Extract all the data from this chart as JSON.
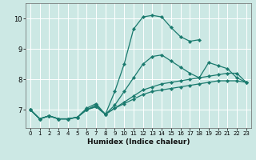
{
  "title": "",
  "xlabel": "Humidex (Indice chaleur)",
  "bg_color": "#cce8e4",
  "grid_color": "#ffffff",
  "line_color": "#1a7a6e",
  "xlim": [
    -0.5,
    23.5
  ],
  "ylim": [
    6.4,
    10.5
  ],
  "yticks": [
    7,
    8,
    9,
    10
  ],
  "xticks": [
    0,
    1,
    2,
    3,
    4,
    5,
    6,
    7,
    8,
    9,
    10,
    11,
    12,
    13,
    14,
    15,
    16,
    17,
    18,
    19,
    20,
    21,
    22,
    23
  ],
  "curves": [
    {
      "x": [
        0,
        1,
        2,
        3,
        4,
        5,
        6,
        7,
        8,
        9,
        10,
        11,
        12,
        13,
        14,
        15,
        16,
        17,
        18,
        19,
        20,
        21,
        22,
        23
      ],
      "y": [
        7.0,
        6.7,
        6.8,
        6.7,
        6.7,
        6.75,
        7.0,
        7.15,
        6.85,
        7.6,
        8.5,
        9.65,
        10.05,
        10.1,
        10.05,
        9.7,
        9.4,
        9.25,
        9.3,
        null,
        null,
        null,
        null,
        null
      ]
    },
    {
      "x": [
        0,
        1,
        2,
        3,
        4,
        5,
        6,
        7,
        8,
        9,
        10,
        11,
        12,
        13,
        14,
        15,
        16,
        17,
        18,
        19,
        20,
        21,
        22,
        23
      ],
      "y": [
        7.0,
        6.7,
        6.8,
        6.7,
        6.7,
        6.75,
        7.05,
        7.2,
        6.85,
        7.15,
        7.6,
        8.05,
        8.5,
        8.75,
        8.8,
        8.6,
        8.4,
        8.2,
        8.05,
        8.55,
        8.45,
        8.35,
        8.05,
        7.9
      ]
    },
    {
      "x": [
        0,
        1,
        2,
        3,
        4,
        5,
        6,
        7,
        8,
        9,
        10,
        11,
        12,
        13,
        14,
        15,
        16,
        17,
        18,
        19,
        20,
        21,
        22,
        23
      ],
      "y": [
        7.0,
        6.7,
        6.8,
        6.7,
        6.7,
        6.75,
        7.0,
        7.1,
        6.85,
        7.05,
        7.25,
        7.45,
        7.65,
        7.75,
        7.85,
        7.9,
        7.95,
        8.0,
        8.05,
        8.1,
        8.15,
        8.2,
        8.2,
        7.9
      ]
    },
    {
      "x": [
        0,
        1,
        2,
        3,
        4,
        5,
        6,
        7,
        8,
        9,
        10,
        11,
        12,
        13,
        14,
        15,
        16,
        17,
        18,
        19,
        20,
        21,
        22,
        23
      ],
      "y": [
        7.0,
        6.7,
        6.8,
        6.7,
        6.7,
        6.75,
        7.0,
        7.1,
        6.85,
        7.05,
        7.2,
        7.35,
        7.5,
        7.6,
        7.65,
        7.7,
        7.75,
        7.8,
        7.85,
        7.9,
        7.95,
        7.95,
        7.95,
        7.9
      ]
    }
  ]
}
